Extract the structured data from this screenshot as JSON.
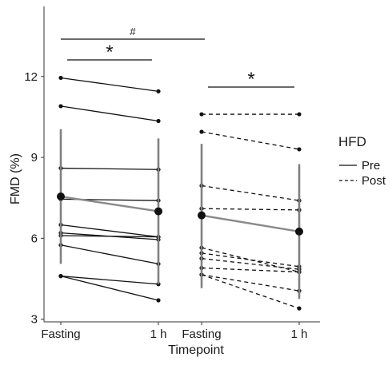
{
  "chart_data": {
    "type": "line",
    "xlabel": "Timepoint",
    "ylabel": "FMD (%)",
    "ylim": [
      2.9,
      14.6
    ],
    "yticks": [
      3,
      6,
      9,
      12
    ],
    "ytick_labels": [
      "3",
      "6",
      "9",
      "12"
    ],
    "grid": false,
    "legend": {
      "title": "HFD",
      "placement": "right",
      "entries": [
        {
          "label": "Pre",
          "line_style": "solid"
        },
        {
          "label": "Post",
          "line_style": "dashed"
        }
      ]
    },
    "panels": [
      {
        "group": "Pre",
        "line_style": "solid",
        "categories": [
          "Fasting",
          "1 h"
        ],
        "individuals": [
          [
            11.95,
            11.45
          ],
          [
            10.9,
            10.35
          ],
          [
            8.6,
            8.55
          ],
          [
            7.45,
            7.4
          ],
          [
            6.5,
            6.05
          ],
          [
            6.2,
            5.95
          ],
          [
            6.1,
            6.05
          ],
          [
            5.75,
            5.05
          ],
          [
            4.6,
            4.3
          ],
          [
            4.6,
            3.7
          ]
        ],
        "mean": [
          7.55,
          7.0
        ],
        "error_range": [
          [
            5.05,
            10.05
          ],
          [
            4.3,
            9.7
          ]
        ]
      },
      {
        "group": "Post",
        "line_style": "dashed",
        "categories": [
          "Fasting",
          "1 h"
        ],
        "individuals": [
          [
            10.6,
            10.6
          ],
          [
            9.95,
            9.3
          ],
          [
            7.95,
            7.4
          ],
          [
            7.1,
            7.05
          ],
          [
            5.65,
            4.75
          ],
          [
            5.45,
            4.95
          ],
          [
            5.25,
            4.85
          ],
          [
            4.9,
            4.75
          ],
          [
            4.65,
            4.05
          ],
          [
            4.65,
            3.4
          ]
        ],
        "mean": [
          6.85,
          6.25
        ],
        "error_range": [
          [
            4.15,
            9.5
          ],
          [
            3.75,
            8.75
          ]
        ]
      }
    ],
    "annotations": [
      {
        "text": "#",
        "between": "Pre Fasting vs Post Fasting"
      },
      {
        "text": "*",
        "between": "Pre Fasting vs Pre 1 h"
      },
      {
        "text": "*",
        "between": "Post Fasting vs Post 1 h"
      }
    ]
  },
  "colors": {
    "points": "#111111",
    "mean_line": "#8a8a8a",
    "error_bar": "#808080",
    "axis": "#333333"
  }
}
